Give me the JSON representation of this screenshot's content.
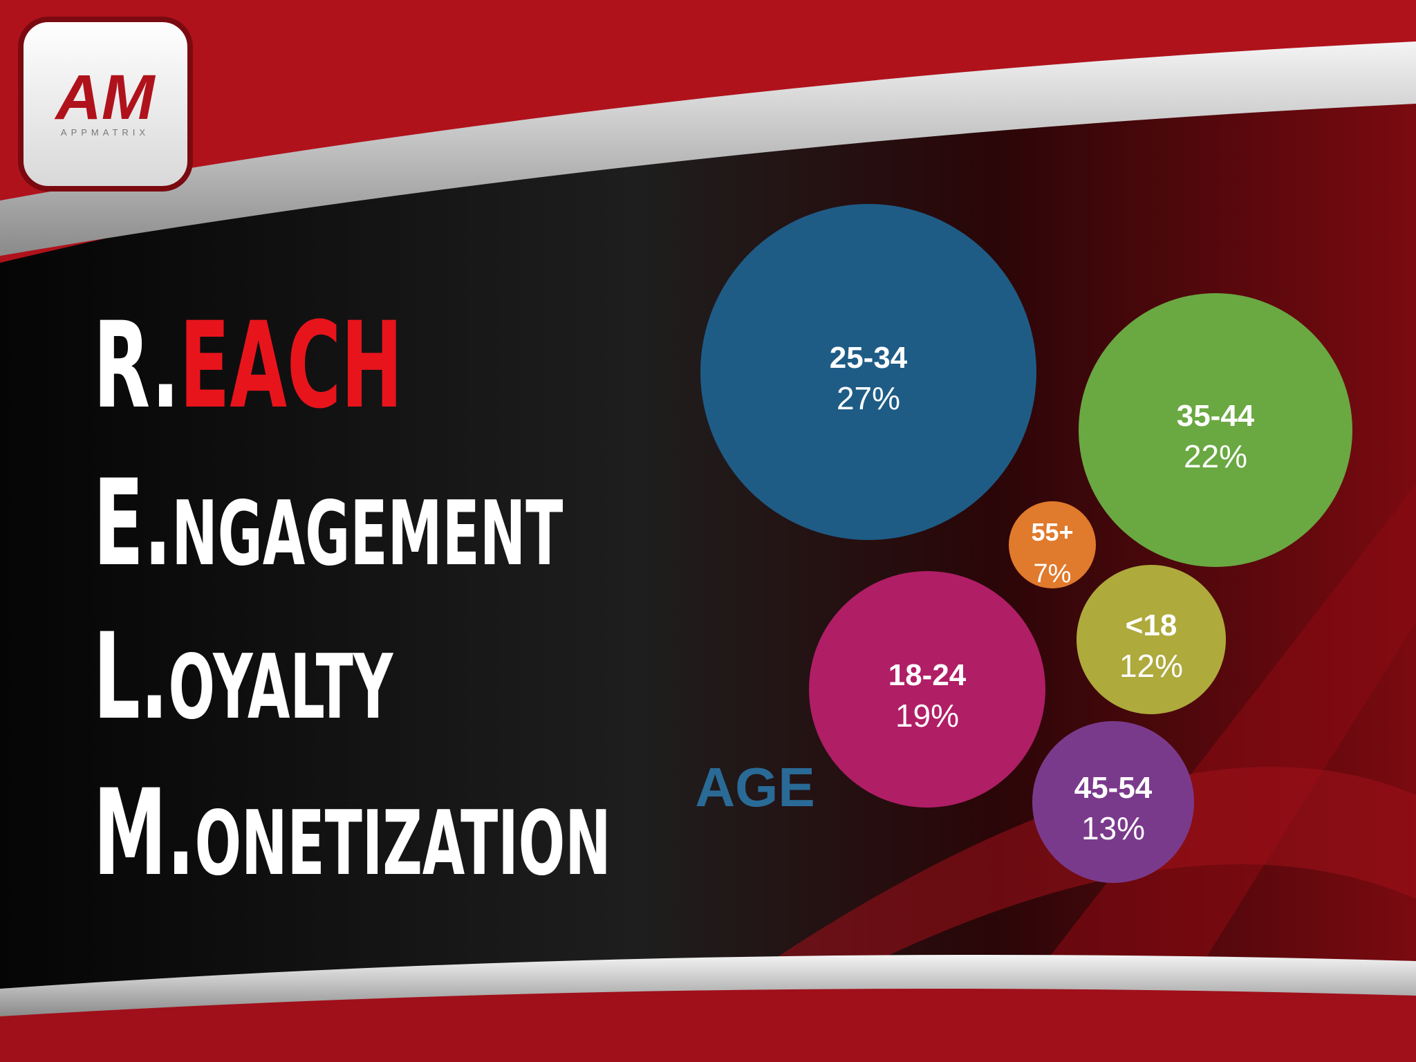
{
  "logo": {
    "mark": "AM",
    "name": "APPMATRIX"
  },
  "acronym": [
    {
      "letter": "R.",
      "rest": "EACH"
    },
    {
      "letter": "E.",
      "rest": "NGAGEMENT"
    },
    {
      "letter": "L.",
      "rest": "OYALTY"
    },
    {
      "letter": "M.",
      "rest": "ONETIZATION"
    }
  ],
  "chart_data": {
    "type": "bubble",
    "title": "AGE",
    "categories": [
      "25-34",
      "35-44",
      "55+",
      "18-24",
      "<18",
      "45-54"
    ],
    "values": [
      27,
      22,
      7,
      19,
      12,
      13
    ],
    "value_labels": [
      "27%",
      "22%",
      "7%",
      "19%",
      "12%",
      "13%"
    ],
    "colors": [
      "#1e5c86",
      "#6aa842",
      "#e07a2c",
      "#b01e66",
      "#aeaa3c",
      "#7a3a8c"
    ]
  }
}
